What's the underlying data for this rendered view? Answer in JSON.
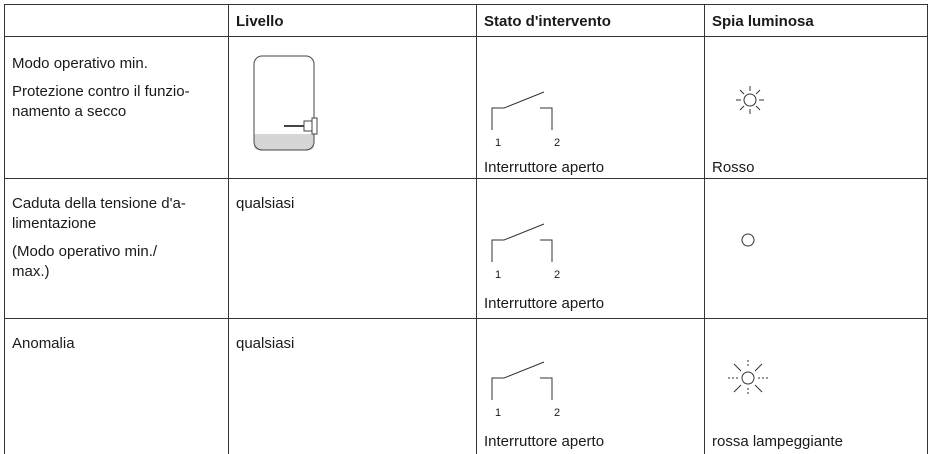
{
  "table": {
    "header": [
      "Livello",
      "Stato d'intervento",
      "Spia luminosa"
    ],
    "rows": [
      {
        "condition": [
          [
            "Modo operativo min."
          ],
          [
            "Protezione contro il funzio-",
            "namento a secco"
          ]
        ],
        "contacts": [
          "1",
          "2"
        ],
        "switch_state": "Interruttore aperto",
        "lamp": "Rosso"
      },
      {
        "condition": [
          [
            "Caduta della tensione d'a-",
            "limentazione"
          ],
          [
            "(Modo operativo min./",
            "max.)"
          ]
        ],
        "level": "qualsiasi",
        "contacts": [
          "1",
          "2"
        ],
        "switch_state": "Interruttore aperto"
      },
      {
        "condition": [
          [
            "Anomalia"
          ]
        ],
        "level": "qualsiasi",
        "contacts": [
          "1",
          "2"
        ],
        "switch_state": "Interruttore aperto",
        "lamp": "rossa lampeggiante"
      }
    ]
  }
}
